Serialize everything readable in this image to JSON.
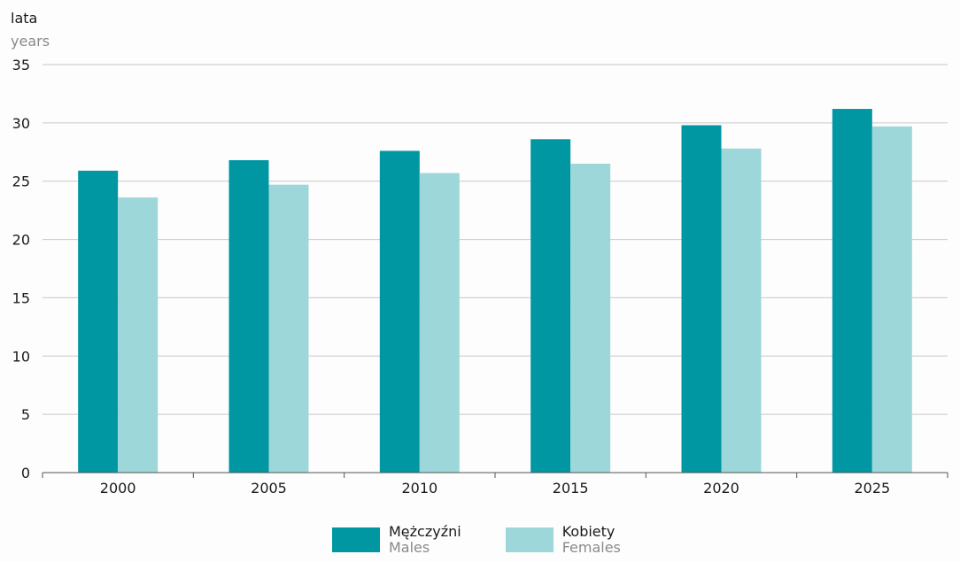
{
  "chart_data": {
    "type": "bar",
    "categories": [
      "2000",
      "2005",
      "2010",
      "2015",
      "2020",
      "2025"
    ],
    "series": [
      {
        "name": "Mężczyźni",
        "name_secondary": "Males",
        "color": "#0097a3",
        "values": [
          25.9,
          26.8,
          27.6,
          28.6,
          29.8,
          31.2
        ]
      },
      {
        "name": "Kobiety",
        "name_secondary": "Females",
        "color": "#9ed7da",
        "values": [
          23.6,
          24.7,
          25.7,
          26.5,
          27.8,
          29.7
        ]
      }
    ],
    "ylabel": "lata",
    "ylabel_secondary": "years",
    "ylim": [
      0,
      35
    ],
    "yticks": [
      0,
      5,
      10,
      15,
      20,
      25,
      30,
      35
    ],
    "grid": true,
    "legend_position": "bottom-center"
  }
}
